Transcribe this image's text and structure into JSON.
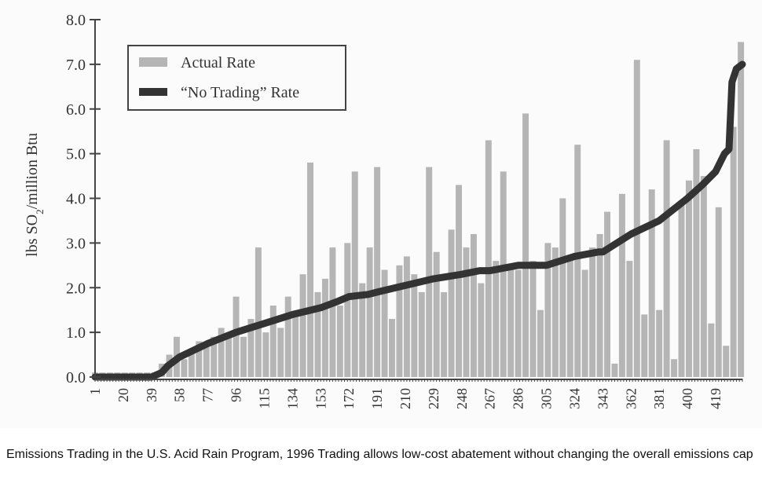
{
  "caption": "Emissions Trading in the U.S. Acid Rain Program, 1996 Trading allows low-cost abatement without changing the overall emissions cap",
  "colors": {
    "actual": "#b5b5b5",
    "no_trading": "#333333",
    "axis": "#444444",
    "text": "#333333"
  },
  "chart_data": {
    "type": "bar",
    "title": "",
    "xlabel": "",
    "ylabel": "lbs SO2/million Btu",
    "ylabel_parts": {
      "before": "lbs SO",
      "sub": "2",
      "after": "/million Btu"
    },
    "xlim": [
      1,
      437
    ],
    "ylim": [
      0,
      8
    ],
    "y_ticks": [
      0,
      1,
      2,
      3,
      4,
      5,
      6,
      7,
      8
    ],
    "y_tick_labels": [
      "0.0",
      "1.0",
      "2.0",
      "3.0",
      "4.0",
      "5.0",
      "6.0",
      "7.0",
      "8.0"
    ],
    "x_tick_labels": [
      "1",
      "20",
      "39",
      "58",
      "77",
      "96",
      "115",
      "134",
      "153",
      "172",
      "191",
      "210",
      "229",
      "248",
      "267",
      "286",
      "305",
      "324",
      "343",
      "362",
      "381",
      "400",
      "419"
    ],
    "grid": false,
    "legend": {
      "placement": "top-left",
      "entries": [
        {
          "label": "Actual Rate",
          "type": "bar"
        },
        {
          "label": "“No Trading” Rate",
          "type": "line"
        }
      ]
    },
    "series": [
      {
        "name": "Actual Rate",
        "type": "bar",
        "note": "Per-unit actual SO2 emission rate (approx. 437 units, highly variable); representative values sampled at every 5th unit",
        "x": [
          1,
          6,
          11,
          16,
          21,
          26,
          31,
          36,
          41,
          46,
          51,
          56,
          61,
          66,
          71,
          76,
          81,
          86,
          91,
          96,
          101,
          106,
          111,
          116,
          121,
          126,
          131,
          136,
          141,
          146,
          151,
          156,
          161,
          166,
          171,
          176,
          181,
          186,
          191,
          196,
          201,
          206,
          211,
          216,
          221,
          226,
          231,
          236,
          241,
          246,
          251,
          256,
          261,
          266,
          271,
          276,
          281,
          286,
          291,
          296,
          301,
          306,
          311,
          316,
          321,
          326,
          331,
          336,
          341,
          346,
          351,
          356,
          361,
          366,
          371,
          376,
          381,
          386,
          391,
          396,
          401,
          406,
          411,
          416,
          421,
          426,
          431,
          436
        ],
        "values": [
          0.1,
          0.1,
          0.1,
          0.1,
          0.1,
          0.1,
          0.1,
          0.1,
          0.1,
          0.3,
          0.5,
          0.9,
          0.4,
          0.6,
          0.8,
          0.7,
          0.9,
          1.1,
          1.0,
          1.8,
          0.9,
          1.3,
          2.9,
          1.0,
          1.6,
          1.1,
          1.8,
          1.4,
          2.3,
          4.8,
          1.9,
          2.2,
          2.9,
          1.6,
          3.0,
          4.6,
          2.1,
          2.9,
          4.7,
          2.4,
          1.3,
          2.5,
          2.7,
          2.3,
          1.9,
          4.7,
          2.8,
          1.9,
          3.3,
          4.3,
          2.9,
          3.2,
          2.1,
          5.3,
          2.6,
          4.6,
          2.5,
          2.4,
          5.9,
          2.6,
          1.5,
          3.0,
          2.9,
          4.0,
          2.7,
          5.2,
          2.4,
          2.9,
          3.2,
          3.7,
          0.3,
          4.1,
          2.6,
          7.1,
          1.4,
          4.2,
          1.5,
          5.3,
          0.4,
          3.9,
          4.4,
          5.1,
          4.5,
          1.2,
          3.8,
          0.7,
          5.6,
          7.5
        ]
      },
      {
        "name": "“No Trading” Rate",
        "type": "line",
        "x": [
          1,
          20,
          39,
          46,
          50,
          58,
          77,
          96,
          115,
          134,
          153,
          165,
          172,
          185,
          191,
          210,
          229,
          248,
          260,
          267,
          286,
          300,
          305,
          324,
          340,
          343,
          362,
          381,
          400,
          410,
          419,
          425,
          428,
          430,
          433,
          437
        ],
        "values": [
          0.0,
          0.0,
          0.0,
          0.1,
          0.25,
          0.45,
          0.75,
          1.0,
          1.2,
          1.4,
          1.55,
          1.7,
          1.8,
          1.85,
          1.9,
          2.05,
          2.2,
          2.3,
          2.38,
          2.38,
          2.5,
          2.5,
          2.5,
          2.7,
          2.8,
          2.8,
          3.2,
          3.5,
          4.0,
          4.3,
          4.6,
          5.0,
          5.1,
          6.6,
          6.9,
          7.0
        ]
      }
    ]
  }
}
